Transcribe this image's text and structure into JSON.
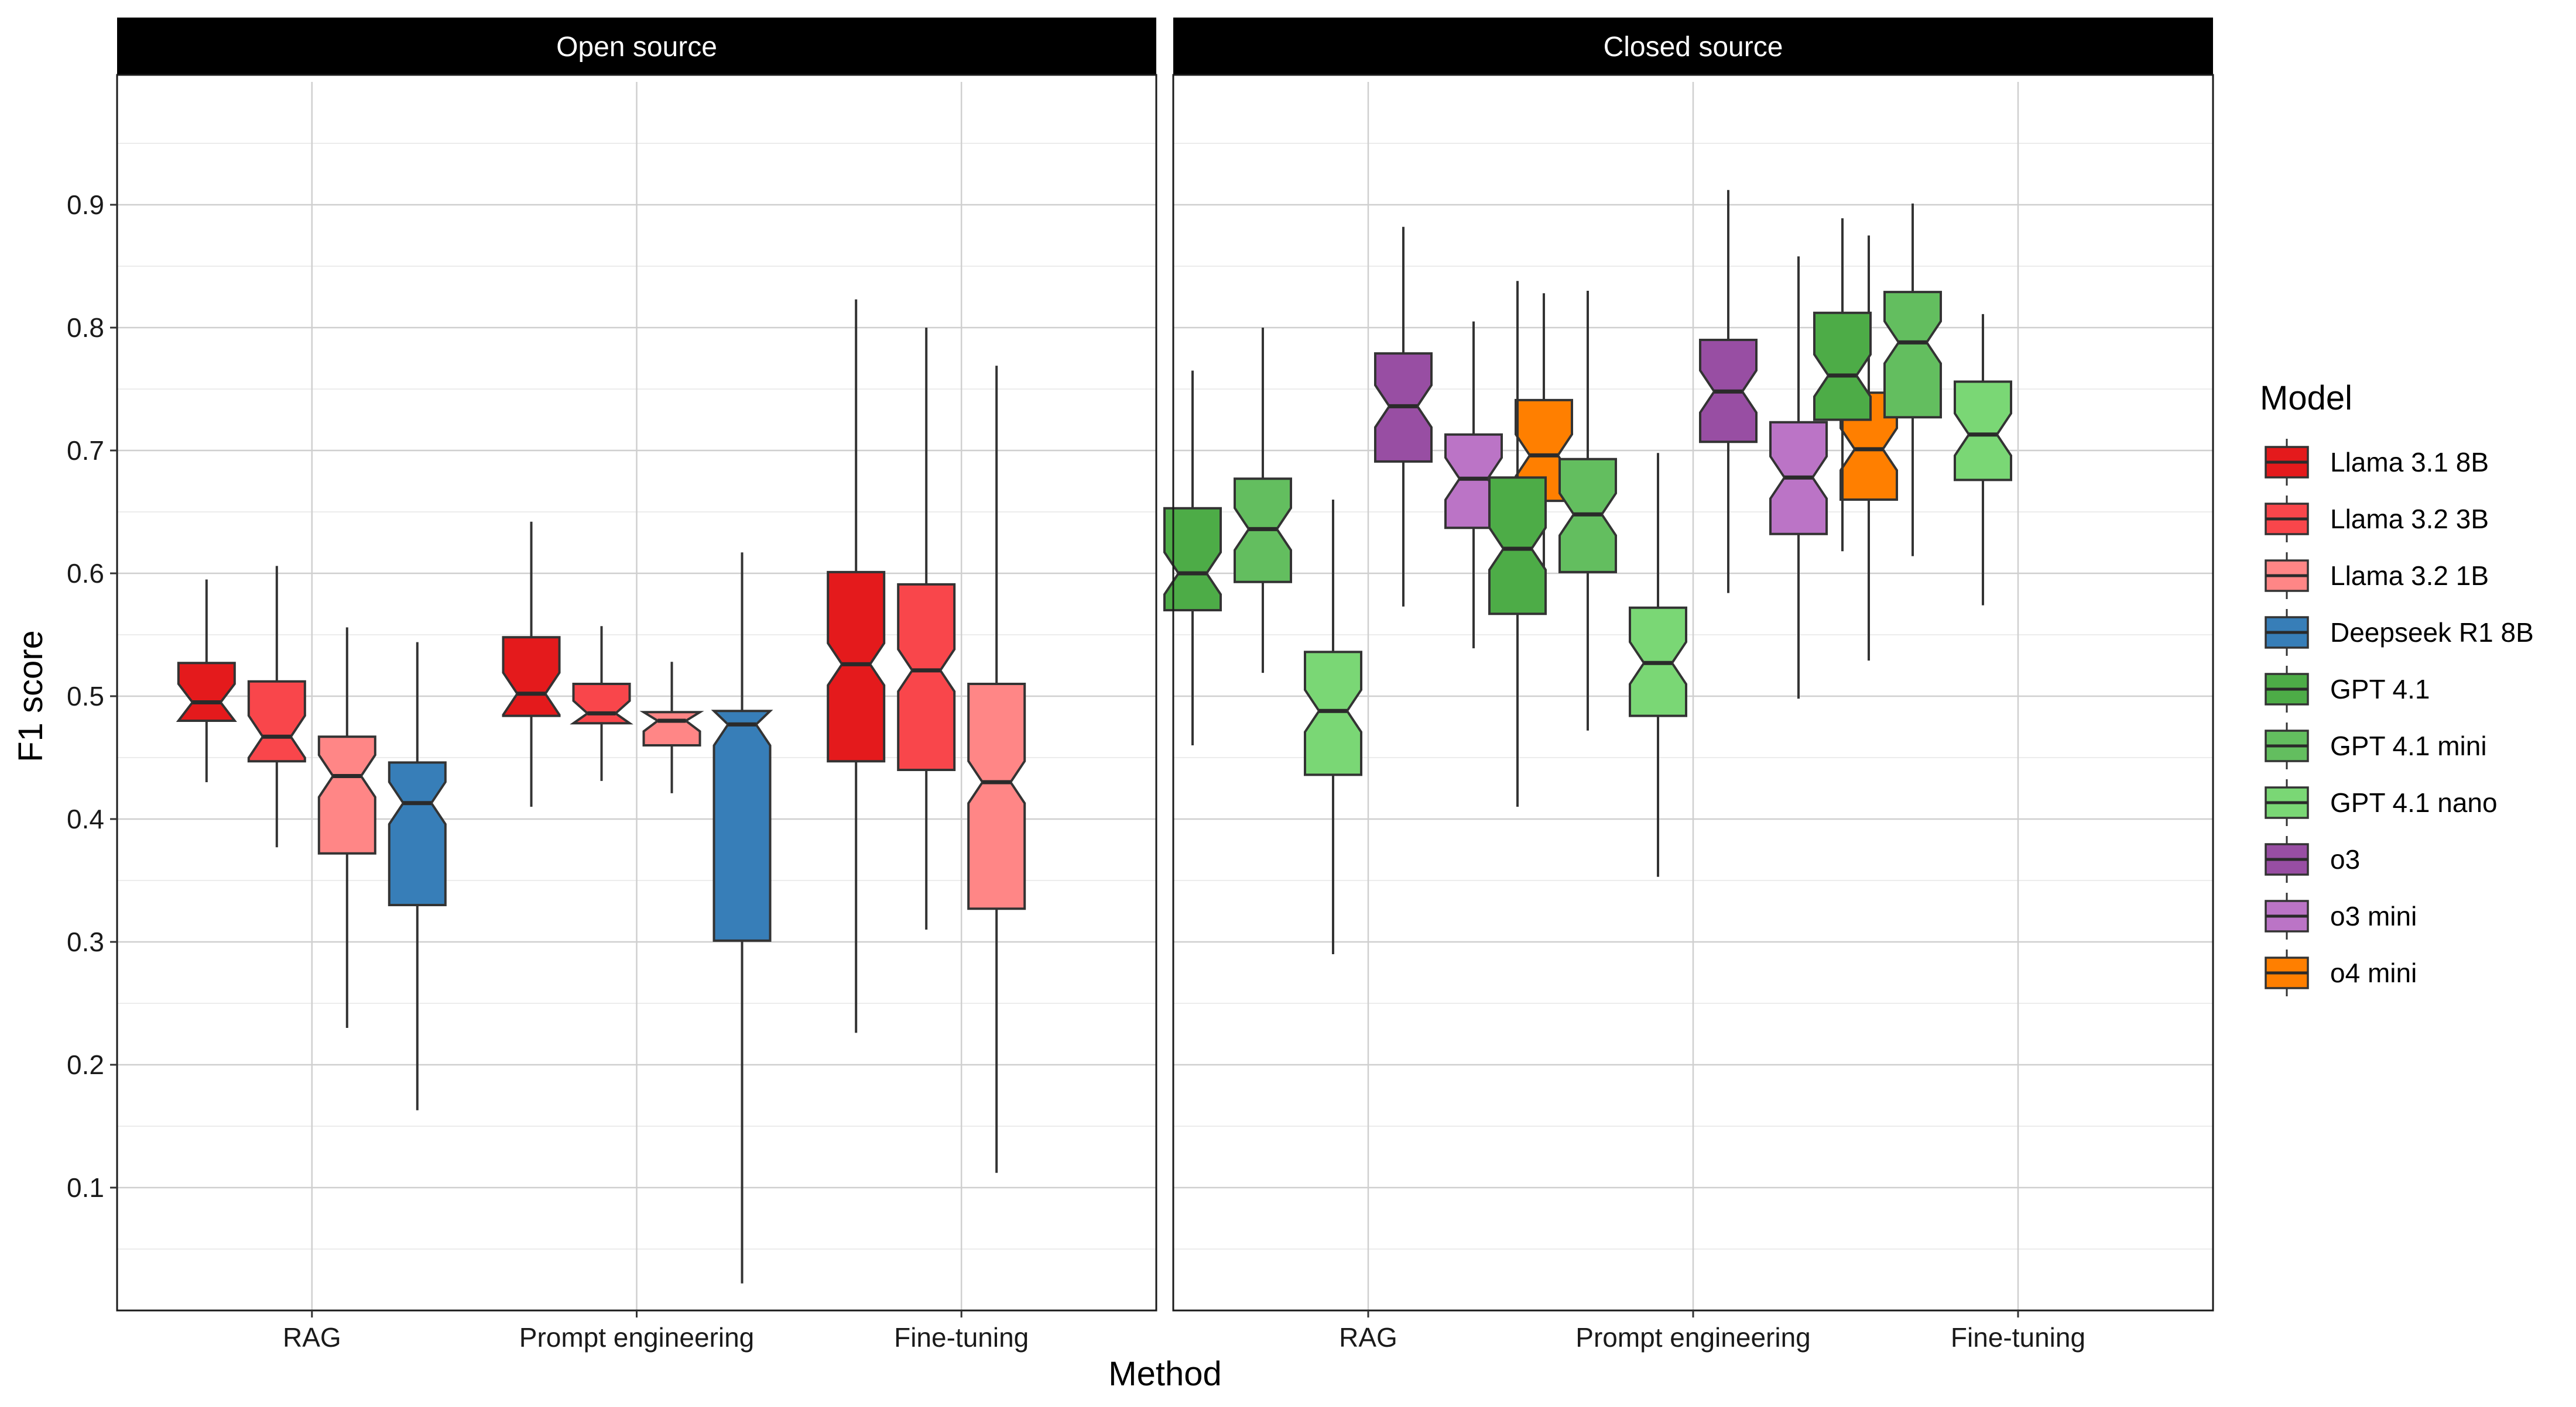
{
  "chart_data": {
    "type": "boxplot",
    "notched": true,
    "xlabel": "Method",
    "ylabel": "F1 score",
    "ylim": [
      0,
      1
    ],
    "y_ticks": [
      0.1,
      0.2,
      0.3,
      0.4,
      0.5,
      0.6,
      0.7,
      0.8,
      0.9
    ],
    "y_tick_labels": [
      "0.1",
      "0.2",
      "0.3",
      "0.4",
      "0.5",
      "0.6",
      "0.7",
      "0.8",
      "0.9"
    ],
    "categories": [
      "RAG",
      "Prompt engineering",
      "Fine-tuning"
    ],
    "legend": {
      "title": "Model",
      "position": "right",
      "entries": [
        {
          "name": "Llama 3.1 8B",
          "color": "#E41A1C"
        },
        {
          "name": "Llama 3.2 3B",
          "color": "#F9464B"
        },
        {
          "name": "Llama 3.2 1B",
          "color": "#FF8686"
        },
        {
          "name": "Deepseek R1 8B",
          "color": "#377EB8"
        },
        {
          "name": "GPT 4.1",
          "color": "#4DAC47"
        },
        {
          "name": "GPT 4.1 mini",
          "color": "#63BE5F"
        },
        {
          "name": "GPT 4.1 nano",
          "color": "#7AD775"
        },
        {
          "name": "o3",
          "color": "#984EA3"
        },
        {
          "name": "o3 mini",
          "color": "#BB74C6"
        },
        {
          "name": "o4 mini",
          "color": "#FF7F00"
        }
      ]
    },
    "panels": [
      {
        "title": "Open source",
        "models": [
          "Llama 3.1 8B",
          "Llama 3.2 3B",
          "Llama 3.2 1B",
          "Deepseek R1 8B"
        ],
        "boxes": [
          {
            "category": "RAG",
            "model": "Llama 3.1 8B",
            "min": 0.43,
            "q1": 0.48,
            "median": 0.495,
            "q3": 0.527,
            "max": 0.595
          },
          {
            "category": "RAG",
            "model": "Llama 3.2 3B",
            "min": 0.377,
            "q1": 0.447,
            "median": 0.467,
            "q3": 0.512,
            "max": 0.606
          },
          {
            "category": "RAG",
            "model": "Llama 3.2 1B",
            "min": 0.23,
            "q1": 0.372,
            "median": 0.435,
            "q3": 0.467,
            "max": 0.556
          },
          {
            "category": "RAG",
            "model": "Deepseek R1 8B",
            "min": 0.163,
            "q1": 0.33,
            "median": 0.413,
            "q3": 0.446,
            "max": 0.544
          },
          {
            "category": "Prompt engineering",
            "model": "Llama 3.1 8B",
            "min": 0.41,
            "q1": 0.484,
            "median": 0.502,
            "q3": 0.548,
            "max": 0.642
          },
          {
            "category": "Prompt engineering",
            "model": "Llama 3.2 3B",
            "min": 0.431,
            "q1": 0.478,
            "median": 0.486,
            "q3": 0.51,
            "max": 0.557
          },
          {
            "category": "Prompt engineering",
            "model": "Llama 3.2 1B",
            "min": 0.421,
            "q1": 0.46,
            "median": 0.48,
            "q3": 0.487,
            "max": 0.528
          },
          {
            "category": "Prompt engineering",
            "model": "Deepseek R1 8B",
            "min": 0.022,
            "q1": 0.301,
            "median": 0.477,
            "q3": 0.488,
            "max": 0.617
          },
          {
            "category": "Fine-tuning",
            "model": "Llama 3.1 8B",
            "min": 0.226,
            "q1": 0.447,
            "median": 0.526,
            "q3": 0.601,
            "max": 0.823
          },
          {
            "category": "Fine-tuning",
            "model": "Llama 3.2 3B",
            "min": 0.31,
            "q1": 0.44,
            "median": 0.521,
            "q3": 0.591,
            "max": 0.8
          },
          {
            "category": "Fine-tuning",
            "model": "Llama 3.2 1B",
            "min": 0.112,
            "q1": 0.327,
            "median": 0.43,
            "q3": 0.51,
            "max": 0.769
          }
        ]
      },
      {
        "title": "Closed source",
        "models": [
          "GPT 4.1",
          "GPT 4.1 mini",
          "GPT 4.1 nano",
          "o3",
          "o3 mini",
          "o4 mini"
        ],
        "boxes": [
          {
            "category": "RAG",
            "model": "GPT 4.1",
            "min": 0.46,
            "q1": 0.57,
            "median": 0.6,
            "q3": 0.653,
            "max": 0.765
          },
          {
            "category": "RAG",
            "model": "GPT 4.1 mini",
            "min": 0.519,
            "q1": 0.593,
            "median": 0.636,
            "q3": 0.677,
            "max": 0.8
          },
          {
            "category": "RAG",
            "model": "GPT 4.1 nano",
            "min": 0.29,
            "q1": 0.436,
            "median": 0.488,
            "q3": 0.536,
            "max": 0.66
          },
          {
            "category": "RAG",
            "model": "o3",
            "min": 0.573,
            "q1": 0.691,
            "median": 0.736,
            "q3": 0.779,
            "max": 0.882
          },
          {
            "category": "RAG",
            "model": "o3 mini",
            "min": 0.539,
            "q1": 0.637,
            "median": 0.677,
            "q3": 0.713,
            "max": 0.805
          },
          {
            "category": "RAG",
            "model": "o4 mini",
            "min": 0.567,
            "q1": 0.659,
            "median": 0.696,
            "q3": 0.741,
            "max": 0.828
          },
          {
            "category": "Prompt engineering",
            "model": "GPT 4.1",
            "min": 0.41,
            "q1": 0.567,
            "median": 0.62,
            "q3": 0.678,
            "max": 0.838
          },
          {
            "category": "Prompt engineering",
            "model": "GPT 4.1 mini",
            "min": 0.472,
            "q1": 0.601,
            "median": 0.648,
            "q3": 0.693,
            "max": 0.83
          },
          {
            "category": "Prompt engineering",
            "model": "GPT 4.1 nano",
            "min": 0.353,
            "q1": 0.484,
            "median": 0.527,
            "q3": 0.572,
            "max": 0.698
          },
          {
            "category": "Prompt engineering",
            "model": "o3",
            "min": 0.584,
            "q1": 0.707,
            "median": 0.748,
            "q3": 0.79,
            "max": 0.912
          },
          {
            "category": "Prompt engineering",
            "model": "o3 mini",
            "min": 0.498,
            "q1": 0.632,
            "median": 0.678,
            "q3": 0.723,
            "max": 0.858
          },
          {
            "category": "Prompt engineering",
            "model": "o4 mini",
            "min": 0.529,
            "q1": 0.66,
            "median": 0.701,
            "q3": 0.747,
            "max": 0.875
          },
          {
            "category": "Fine-tuning",
            "model": "GPT 4.1",
            "min": 0.618,
            "q1": 0.725,
            "median": 0.761,
            "q3": 0.812,
            "max": 0.889
          },
          {
            "category": "Fine-tuning",
            "model": "GPT 4.1 mini",
            "min": 0.614,
            "q1": 0.727,
            "median": 0.788,
            "q3": 0.829,
            "max": 0.901
          },
          {
            "category": "Fine-tuning",
            "model": "GPT 4.1 nano",
            "min": 0.574,
            "q1": 0.676,
            "median": 0.713,
            "q3": 0.756,
            "max": 0.811
          }
        ]
      }
    ]
  }
}
